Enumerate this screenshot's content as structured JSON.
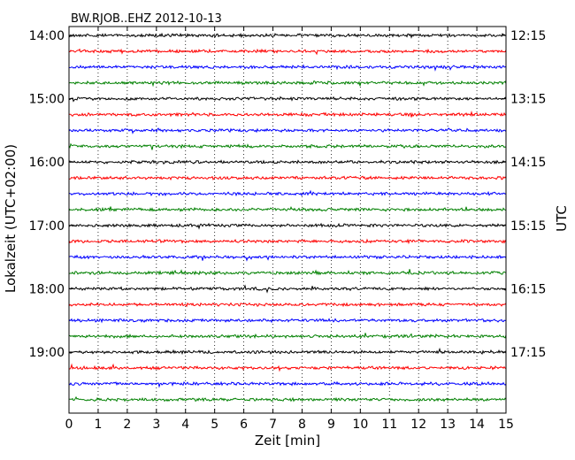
{
  "chart_data": {
    "type": "line",
    "title": "BW.RJOB..EHZ 2012-10-13",
    "xlabel": "Zeit  [min]",
    "ylabel_left": "Lokalzeit (UTC+02:00)",
    "ylabel_right": "UTC",
    "x_ticks": [
      "0",
      "1",
      "2",
      "3",
      "4",
      "5",
      "6",
      "7",
      "8",
      "9",
      "10",
      "11",
      "12",
      "13",
      "14",
      "15"
    ],
    "xlim": [
      0,
      15
    ],
    "grid": {
      "vertical_dotted": true
    },
    "left_time_labels": [
      "14:00",
      "15:00",
      "16:00",
      "17:00",
      "18:00",
      "19:00"
    ],
    "right_time_labels": [
      "12:15",
      "13:15",
      "14:15",
      "15:15",
      "16:15",
      "17:15"
    ],
    "trace_colors": [
      "#000000",
      "#ff0000",
      "#0000ff",
      "#008000"
    ],
    "trace_count": 24,
    "trace_interval_minutes": 15
  }
}
